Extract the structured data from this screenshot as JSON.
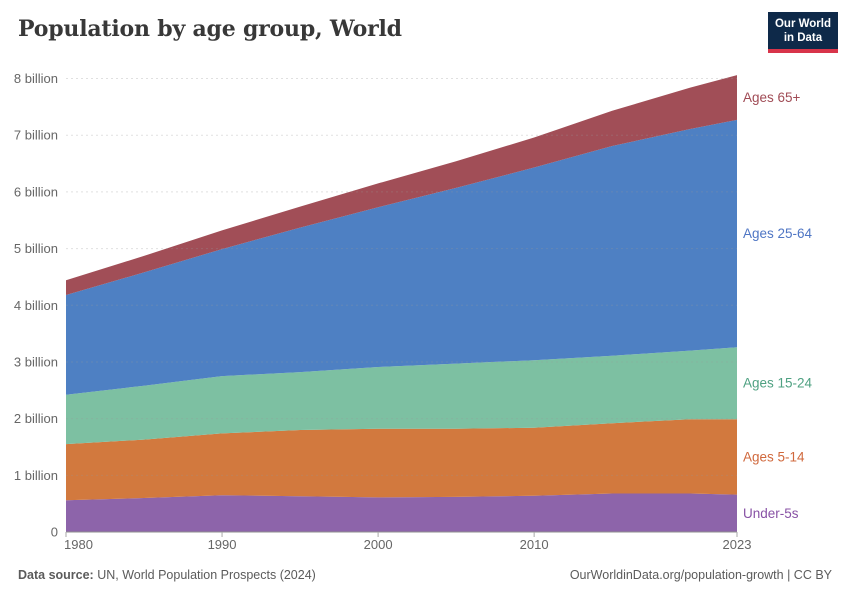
{
  "header": {
    "title": "Population by age group, World",
    "logo": {
      "line1": "Our World",
      "line2": "in Data",
      "navy": "#0e2949",
      "red": "#d8344a"
    }
  },
  "footer": {
    "source_label": "Data source:",
    "source_text": " UN, World Population Prospects (2024)",
    "credit": "OurWorldinData.org/population-growth | CC BY"
  },
  "chart_data": {
    "type": "area",
    "stacked": true,
    "title": "Population by age group, World",
    "unit": "billion people",
    "x": [
      1980,
      1985,
      1990,
      1995,
      2000,
      2005,
      2010,
      2015,
      2020,
      2023
    ],
    "series": [
      {
        "name": "Under-5s",
        "color": "#8d64aa",
        "label_color": "#8852a5",
        "values": [
          0.56,
          0.6,
          0.65,
          0.63,
          0.61,
          0.62,
          0.64,
          0.68,
          0.68,
          0.66
        ]
      },
      {
        "name": "Ages 5-14",
        "color": "#d2793e",
        "label_color": "#d0683c",
        "values": [
          0.99,
          1.03,
          1.09,
          1.17,
          1.21,
          1.2,
          1.2,
          1.24,
          1.31,
          1.33
        ]
      },
      {
        "name": "Ages 15-24",
        "color": "#7dc0a2",
        "label_color": "#4fa182",
        "values": [
          0.87,
          0.95,
          1.01,
          1.02,
          1.09,
          1.15,
          1.19,
          1.19,
          1.21,
          1.27
        ]
      },
      {
        "name": "Ages 25-64",
        "color": "#4e80c3",
        "label_color": "#4f76c4",
        "values": [
          1.76,
          2.0,
          2.24,
          2.55,
          2.82,
          3.1,
          3.4,
          3.7,
          3.91,
          4.01
        ]
      },
      {
        "name": "Ages 65+",
        "color": "#a14e57",
        "label_color": "#a04b55",
        "values": [
          0.26,
          0.29,
          0.33,
          0.37,
          0.42,
          0.47,
          0.53,
          0.62,
          0.73,
          0.79
        ]
      }
    ],
    "x_ticks": [
      1980,
      1990,
      2000,
      2010,
      2023
    ],
    "y_ticks": [
      0,
      1,
      2,
      3,
      4,
      5,
      6,
      7,
      8
    ],
    "y_tick_labels": [
      "0",
      "1 billion",
      "2 billion",
      "3 billion",
      "4 billion",
      "5 billion",
      "6 billion",
      "7 billion",
      "8 billion"
    ],
    "ylim": [
      0,
      8
    ],
    "grid": "dashed-horizontal",
    "legend_position": "right-of-plot",
    "axis_text_color": "#666666",
    "axis_line_color": "#8f8f8f",
    "grid_color": "#999999"
  }
}
